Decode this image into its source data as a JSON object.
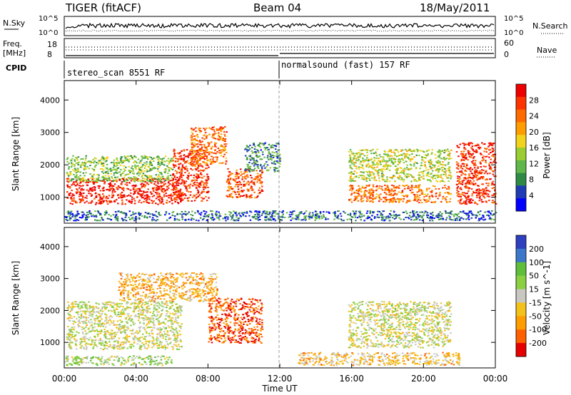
{
  "header": {
    "title": "TIGER (fitACF)",
    "beam": "Beam 04",
    "date": "18/May/2011"
  },
  "aux_panels": {
    "nsky_label": "N.Sky",
    "nsearch_label": "N.Search",
    "nsky_ticks": [
      "10^5",
      "10^0"
    ],
    "nsearch_ticks": [
      "10^5",
      "10^0"
    ],
    "freq_label_1": "Freq.",
    "freq_label_2": "[MHz]",
    "freq_ticks": [
      "18",
      "8"
    ],
    "nave_label": "Nave",
    "nave_ticks": [
      "60",
      "0"
    ],
    "cpid_label": "CPID",
    "cpid_segments": [
      {
        "label": "stereo_scan 8551 RF",
        "start_hour": 0
      },
      {
        "label": "normalsound (fast) 157 RF",
        "start_hour": 12
      }
    ]
  },
  "colors": {
    "power_scale": [
      "#0000ff",
      "#1f3cb5",
      "#2f8a45",
      "#60b84a",
      "#9acd32",
      "#f2d21a",
      "#ff9c00",
      "#ff6a00",
      "#ff3300",
      "#ee0000"
    ],
    "velocity_scale": [
      "#2e3fbf",
      "#3b78c9",
      "#5fbf3b",
      "#8bd042",
      "#c8c8c0",
      "#f2c21a",
      "#ff9c00",
      "#ff6000",
      "#e60000"
    ]
  },
  "chart_data": [
    {
      "type": "heatmap",
      "panel": "power",
      "ylabel": "Slant Range [km]",
      "yticks": [
        "4000",
        "3000",
        "2000",
        "1000"
      ],
      "ylim": [
        200,
        4600
      ],
      "xlim": [
        0,
        24
      ],
      "colorbar_label": "Power [dB]",
      "colorbar_ticks": [
        "28",
        "24",
        "20",
        "16",
        "12",
        "8",
        "4"
      ],
      "colorbar_range": [
        0,
        30
      ],
      "echo_regions": [
        {
          "t0": 0.1,
          "t1": 6.5,
          "r0": 800,
          "r1": 1600,
          "level": 28
        },
        {
          "t0": 0.1,
          "t1": 6.0,
          "r0": 1500,
          "r1": 2300,
          "level": 12
        },
        {
          "t0": 6.0,
          "t1": 8.0,
          "r0": 900,
          "r1": 2500,
          "level": 26
        },
        {
          "t0": 7.0,
          "t1": 9.0,
          "r0": 2000,
          "r1": 3200,
          "level": 22
        },
        {
          "t0": 9.0,
          "t1": 11.0,
          "r0": 1000,
          "r1": 1900,
          "level": 24
        },
        {
          "t0": 10.0,
          "t1": 12.0,
          "r0": 1800,
          "r1": 2700,
          "level": 8
        },
        {
          "t0": 15.8,
          "t1": 21.5,
          "r0": 850,
          "r1": 1400,
          "level": 22
        },
        {
          "t0": 15.8,
          "t1": 21.5,
          "r0": 1500,
          "r1": 2500,
          "level": 14
        },
        {
          "t0": 21.8,
          "t1": 24.0,
          "r0": 800,
          "r1": 2700,
          "level": 26
        },
        {
          "t0": 0.0,
          "t1": 24.0,
          "r0": 300,
          "r1": 600,
          "level": 6
        }
      ]
    },
    {
      "type": "heatmap",
      "panel": "velocity",
      "ylabel": "Slant Range [km]",
      "xlabel": "Time UT",
      "yticks": [
        "4000",
        "3000",
        "2000",
        "1000"
      ],
      "ylim": [
        200,
        4600
      ],
      "xlim": [
        0,
        24
      ],
      "xticks": [
        "00:00",
        "04:00",
        "08:00",
        "12:00",
        "16:00",
        "20:00",
        "00:00"
      ],
      "colorbar_label": "Velocity [m s^-1]",
      "colorbar_ticks": [
        "200",
        "100",
        "50",
        "15",
        "-15",
        "-50",
        "-100",
        "-200"
      ],
      "colorbar_range": [
        -250,
        250
      ],
      "echo_regions": [
        {
          "t0": 0.1,
          "t1": 6.5,
          "r0": 800,
          "r1": 2300,
          "level": 0
        },
        {
          "t0": 3.0,
          "t1": 8.5,
          "r0": 2300,
          "r1": 3200,
          "level": -80
        },
        {
          "t0": 8.0,
          "t1": 11.0,
          "r0": 1000,
          "r1": 2400,
          "level": -180
        },
        {
          "t0": 15.8,
          "t1": 21.5,
          "r0": 850,
          "r1": 2300,
          "level": 0
        },
        {
          "t0": 13.0,
          "t1": 22.0,
          "r0": 300,
          "r1": 700,
          "level": -60
        },
        {
          "t0": 0.0,
          "t1": 6.0,
          "r0": 300,
          "r1": 600,
          "level": 40
        }
      ]
    }
  ]
}
